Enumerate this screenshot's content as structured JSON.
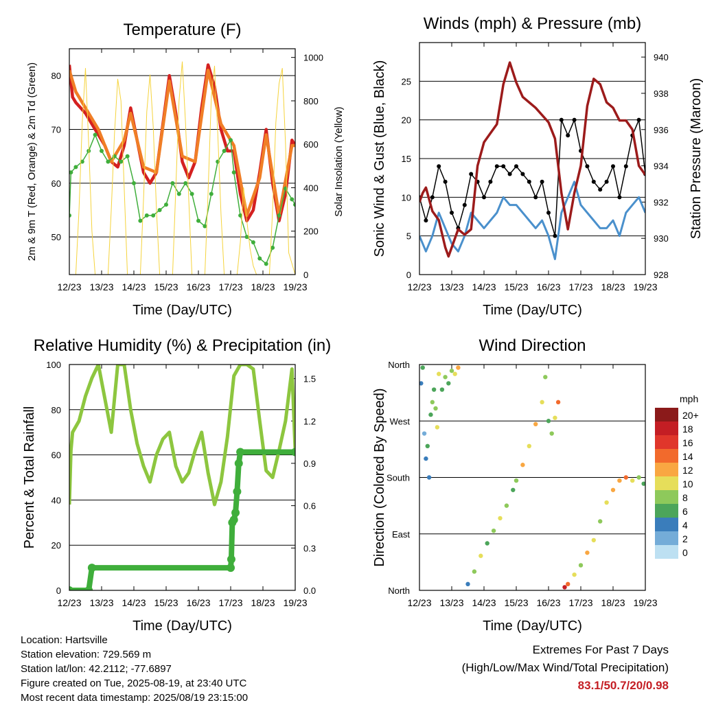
{
  "chart_data": [
    {
      "type": "line",
      "title": "Temperature (F)",
      "xlabel": "Time (Day/UTC)",
      "ylabel": "2m & 9m T (Red, Orange) & 2m Td (Green)",
      "ylabel_right": "Solar Insolation (Yellow)",
      "x_ticks": [
        "12/23",
        "13/23",
        "14/23",
        "15/23",
        "16/23",
        "17/23",
        "18/23",
        "19/23"
      ],
      "x_range": [
        0,
        7
      ],
      "ylim": [
        43,
        85
      ],
      "y_ticks": [
        50,
        60,
        70,
        80
      ],
      "ylim_right": [
        0,
        1040
      ],
      "y_ticks_right": [
        0,
        200,
        400,
        600,
        800,
        1000
      ],
      "grid": true,
      "series": [
        {
          "name": "2m T",
          "color": "#d42020",
          "x": [
            0,
            0.1,
            0.2,
            0.35,
            0.5,
            0.7,
            0.9,
            1.1,
            1.3,
            1.5,
            1.7,
            1.9,
            2.1,
            2.3,
            2.5,
            2.7,
            2.9,
            3.1,
            3.3,
            3.5,
            3.7,
            3.9,
            4.1,
            4.3,
            4.5,
            4.7,
            4.9,
            5.1,
            5.3,
            5.5,
            5.7,
            5.9,
            6.1,
            6.3,
            6.5,
            6.7,
            6.9,
            7
          ],
          "values": [
            82,
            76,
            75,
            74,
            73,
            71,
            69,
            67,
            64,
            63,
            67,
            74,
            68,
            62,
            60,
            62,
            71,
            80,
            73,
            64,
            61,
            64,
            74,
            82,
            78,
            70,
            66,
            66,
            58,
            53,
            55,
            62,
            70,
            60,
            53,
            58,
            68,
            67
          ]
        },
        {
          "name": "9m T",
          "color": "#f07e26",
          "x": [
            0,
            0.2,
            0.5,
            0.9,
            1.3,
            1.7,
            1.9,
            2.3,
            2.7,
            3.1,
            3.5,
            3.9,
            4.3,
            4.7,
            5.1,
            5.5,
            5.9,
            6.1,
            6.5,
            6.9,
            7
          ],
          "values": [
            81,
            77,
            74,
            70,
            64,
            68,
            73,
            63,
            62,
            79,
            65,
            64,
            81,
            71,
            67,
            54,
            61,
            69,
            54,
            67,
            67
          ]
        },
        {
          "name": "2m Td",
          "color": "#3fae3b",
          "x": [
            0,
            0.05,
            0.2,
            0.4,
            0.6,
            0.8,
            1.0,
            1.2,
            1.4,
            1.6,
            1.8,
            2.0,
            2.2,
            2.4,
            2.6,
            2.8,
            3.0,
            3.2,
            3.4,
            3.6,
            3.8,
            4.0,
            4.2,
            4.4,
            4.6,
            4.8,
            5.0,
            5.1,
            5.3,
            5.5,
            5.7,
            5.9,
            6.1,
            6.3,
            6.5,
            6.7,
            6.9,
            7
          ],
          "values": [
            54,
            62,
            63,
            64,
            66,
            69,
            66,
            64,
            65,
            64,
            65,
            60,
            53,
            54,
            54,
            55,
            56,
            60,
            58,
            60,
            58,
            53,
            52,
            58,
            64,
            66,
            68,
            62,
            54,
            50,
            49,
            46,
            45,
            48,
            54,
            59,
            57,
            56
          ]
        },
        {
          "name": "Solar Insolation",
          "color": "#f5d33c",
          "axis": "right",
          "x": [
            0,
            0.2,
            0.3,
            0.4,
            0.5,
            0.6,
            0.7,
            0.8,
            1.0,
            1.2,
            1.3,
            1.4,
            1.5,
            1.6,
            1.7,
            1.8,
            2.0,
            2.2,
            2.3,
            2.4,
            2.5,
            2.6,
            2.7,
            2.8,
            3.0,
            3.2,
            3.3,
            3.4,
            3.5,
            3.6,
            3.7,
            3.8,
            4.0,
            4.2,
            4.3,
            4.4,
            4.5,
            4.6,
            4.7,
            4.8,
            5.0,
            5.2,
            5.3,
            5.4,
            5.5,
            5.6,
            5.7,
            5.8,
            6.0,
            6.2,
            6.3,
            6.4,
            6.5,
            6.6,
            6.7,
            6.8,
            7.0
          ],
          "values": [
            0,
            0,
            300,
            700,
            950,
            600,
            200,
            0,
            0,
            0,
            300,
            650,
            900,
            800,
            400,
            0,
            0,
            0,
            350,
            750,
            920,
            680,
            300,
            0,
            0,
            0,
            400,
            800,
            980,
            700,
            350,
            0,
            0,
            0,
            380,
            820,
            960,
            650,
            280,
            0,
            0,
            0,
            150,
            400,
            250,
            120,
            40,
            0,
            0,
            0,
            300,
            700,
            880,
            950,
            600,
            100,
            0
          ]
        }
      ]
    },
    {
      "type": "line",
      "title": "Winds (mph) & Pressure (mb)",
      "xlabel": "Time (Day/UTC)",
      "ylabel": "Sonic Wind & Gust (Blue, Black)",
      "ylabel_right": "Station Pressure (Maroon)",
      "x_ticks": [
        "12/23",
        "13/23",
        "14/23",
        "15/23",
        "16/23",
        "17/23",
        "18/23",
        "19/23"
      ],
      "x_range": [
        0,
        7
      ],
      "ylim": [
        0,
        30
      ],
      "y_ticks": [
        0,
        5,
        10,
        15,
        20,
        25
      ],
      "ylim_right": [
        928,
        940.8
      ],
      "y_ticks_right": [
        928,
        930,
        932,
        934,
        936,
        938,
        940
      ],
      "grid": true,
      "series": [
        {
          "name": "Sonic Wind",
          "color": "#4a90cc",
          "x": [
            0,
            0.2,
            0.4,
            0.6,
            0.8,
            1.0,
            1.2,
            1.4,
            1.6,
            1.8,
            2.0,
            2.2,
            2.4,
            2.6,
            2.8,
            3.0,
            3.2,
            3.4,
            3.6,
            3.8,
            4.0,
            4.2,
            4.4,
            4.6,
            4.8,
            5.0,
            5.2,
            5.4,
            5.6,
            5.8,
            6.0,
            6.2,
            6.4,
            6.6,
            6.8,
            7.0
          ],
          "values": [
            5,
            3,
            5,
            8,
            6,
            4,
            3,
            5,
            8,
            7,
            6,
            7,
            8,
            10,
            9,
            9,
            8,
            7,
            6,
            7,
            5,
            2,
            8,
            10,
            12,
            9,
            8,
            7,
            6,
            6,
            7,
            5,
            8,
            9,
            10,
            8
          ]
        },
        {
          "name": "Gust",
          "color": "#000000",
          "x": [
            0,
            0.2,
            0.4,
            0.6,
            0.8,
            1.0,
            1.2,
            1.4,
            1.6,
            1.8,
            2.0,
            2.2,
            2.4,
            2.6,
            2.8,
            3.0,
            3.2,
            3.4,
            3.6,
            3.8,
            4.0,
            4.2,
            4.4,
            4.6,
            4.8,
            5.0,
            5.2,
            5.4,
            5.6,
            5.8,
            6.0,
            6.2,
            6.4,
            6.6,
            6.8,
            7.0
          ],
          "values": [
            10,
            7,
            10,
            14,
            12,
            8,
            6,
            9,
            13,
            12,
            10,
            12,
            14,
            14,
            13,
            14,
            13,
            12,
            10,
            12,
            8,
            5,
            20,
            18,
            20,
            16,
            14,
            12,
            11,
            12,
            14,
            10,
            14,
            18,
            20,
            13
          ]
        },
        {
          "name": "Station Pressure",
          "color": "#9c1b1b",
          "axis": "right",
          "x": [
            0,
            0.1,
            0.2,
            0.4,
            0.6,
            0.8,
            0.9,
            1.0,
            1.2,
            1.4,
            1.6,
            1.8,
            2.0,
            2.2,
            2.4,
            2.6,
            2.8,
            3.0,
            3.2,
            3.4,
            3.6,
            3.8,
            4.0,
            4.2,
            4.4,
            4.6,
            4.8,
            5.0,
            5.2,
            5.4,
            5.6,
            5.8,
            6.0,
            6.2,
            6.4,
            6.6,
            6.8,
            7.0
          ],
          "values": [
            932,
            932.5,
            932.8,
            931.5,
            931,
            929.5,
            929,
            929.5,
            930.5,
            930.2,
            930.5,
            934,
            935.3,
            935.8,
            936.3,
            938.5,
            939.7,
            938.6,
            937.8,
            937.5,
            937.2,
            936.8,
            936.4,
            935.5,
            932.5,
            930.5,
            932.5,
            934,
            937.3,
            938.8,
            938.5,
            937.5,
            937.2,
            936.5,
            936.5,
            936,
            934,
            933.5
          ]
        }
      ]
    },
    {
      "type": "line",
      "title": "Relative Humidity (%) & Precipitation (in)",
      "xlabel": "Time (Day/UTC)",
      "ylabel": "Percent & Total Rainfall",
      "x_ticks": [
        "12/23",
        "13/23",
        "14/23",
        "15/23",
        "16/23",
        "17/23",
        "18/23",
        "19/23"
      ],
      "x_range": [
        0,
        7
      ],
      "ylim": [
        0,
        100
      ],
      "y_ticks": [
        0,
        20,
        40,
        60,
        80,
        100
      ],
      "ylim_right": [
        0,
        1.6
      ],
      "y_ticks_right": [
        "0.0",
        "0.3",
        "0.6",
        "0.9",
        "1.2",
        "1.5"
      ],
      "grid": true,
      "series": [
        {
          "name": "Relative Humidity",
          "color": "#8dc63f",
          "x": [
            0,
            0.05,
            0.1,
            0.3,
            0.5,
            0.7,
            0.9,
            1.1,
            1.3,
            1.5,
            1.7,
            1.9,
            2.1,
            2.3,
            2.5,
            2.7,
            2.9,
            3.1,
            3.3,
            3.5,
            3.7,
            3.9,
            4.1,
            4.3,
            4.5,
            4.7,
            4.9,
            5.1,
            5.3,
            5.5,
            5.7,
            5.9,
            6.1,
            6.3,
            6.5,
            6.7,
            6.9,
            7
          ],
          "values": [
            38,
            62,
            70,
            75,
            86,
            94,
            100,
            85,
            70,
            100,
            100,
            80,
            65,
            55,
            48,
            60,
            67,
            70,
            55,
            48,
            52,
            62,
            70,
            52,
            38,
            48,
            68,
            95,
            100,
            100,
            98,
            75,
            53,
            50,
            62,
            75,
            98,
            62
          ]
        },
        {
          "name": "Total Rainfall",
          "color": "#3fae3b",
          "axis": "right",
          "x": [
            0,
            0.6,
            0.7,
            5.0,
            5.02,
            5.05,
            5.1,
            5.15,
            5.2,
            5.25,
            5.3,
            7.0
          ],
          "values": [
            0,
            0,
            0.16,
            0.16,
            0.22,
            0.48,
            0.5,
            0.55,
            0.7,
            0.9,
            0.98,
            0.98
          ]
        }
      ]
    },
    {
      "type": "scatter",
      "title": "Wind Direction",
      "xlabel": "Time (Day/UTC)",
      "ylabel": "Direction (Colored By Speed)",
      "x_ticks": [
        "12/23",
        "13/23",
        "14/23",
        "15/23",
        "16/23",
        "17/23",
        "18/23",
        "19/23"
      ],
      "x_range": [
        0,
        7
      ],
      "y_categories": [
        "North",
        "East",
        "South",
        "West",
        "North"
      ],
      "ylim": [
        0,
        360
      ],
      "grid": true,
      "legend": {
        "title": "mph",
        "position": "right",
        "labels": [
          "20+",
          "18",
          "16",
          "14",
          "12",
          "10",
          "8",
          "6",
          "4",
          "2",
          "0"
        ],
        "colors": [
          "#8b1a1a",
          "#c41e24",
          "#e0362b",
          "#f26a2c",
          "#f9a742",
          "#e6de5a",
          "#8ec95b",
          "#4ca55a",
          "#3a7dbb",
          "#74acd8",
          "#bde0f2"
        ]
      },
      "points": [
        {
          "x": 0.05,
          "y": 330,
          "s": 4
        },
        {
          "x": 0.1,
          "y": 355,
          "s": 6
        },
        {
          "x": 0.15,
          "y": 250,
          "s": 2
        },
        {
          "x": 0.2,
          "y": 210,
          "s": 4
        },
        {
          "x": 0.25,
          "y": 230,
          "s": 6
        },
        {
          "x": 0.3,
          "y": 180,
          "s": 3
        },
        {
          "x": 0.35,
          "y": 280,
          "s": 5
        },
        {
          "x": 0.4,
          "y": 300,
          "s": 8
        },
        {
          "x": 0.45,
          "y": 320,
          "s": 6
        },
        {
          "x": 0.5,
          "y": 290,
          "s": 7
        },
        {
          "x": 0.55,
          "y": 260,
          "s": 9
        },
        {
          "x": 0.6,
          "y": 345,
          "s": 10
        },
        {
          "x": 0.7,
          "y": 320,
          "s": 6
        },
        {
          "x": 0.8,
          "y": 340,
          "s": 8
        },
        {
          "x": 0.9,
          "y": 330,
          "s": 6
        },
        {
          "x": 1.0,
          "y": 350,
          "s": 7
        },
        {
          "x": 1.1,
          "y": 345,
          "s": 10
        },
        {
          "x": 1.2,
          "y": 355,
          "s": 12
        },
        {
          "x": 1.5,
          "y": 10,
          "s": 4
        },
        {
          "x": 1.7,
          "y": 30,
          "s": 8
        },
        {
          "x": 1.9,
          "y": 55,
          "s": 10
        },
        {
          "x": 2.1,
          "y": 75,
          "s": 6
        },
        {
          "x": 2.3,
          "y": 95,
          "s": 8
        },
        {
          "x": 2.5,
          "y": 115,
          "s": 10
        },
        {
          "x": 2.7,
          "y": 135,
          "s": 8
        },
        {
          "x": 2.9,
          "y": 160,
          "s": 6
        },
        {
          "x": 3.0,
          "y": 175,
          "s": 8
        },
        {
          "x": 3.2,
          "y": 200,
          "s": 12
        },
        {
          "x": 3.4,
          "y": 230,
          "s": 10
        },
        {
          "x": 3.6,
          "y": 265,
          "s": 12
        },
        {
          "x": 3.8,
          "y": 300,
          "s": 10
        },
        {
          "x": 3.9,
          "y": 340,
          "s": 8
        },
        {
          "x": 4.0,
          "y": 270,
          "s": 6
        },
        {
          "x": 4.1,
          "y": 250,
          "s": 8
        },
        {
          "x": 4.2,
          "y": 275,
          "s": 10
        },
        {
          "x": 4.3,
          "y": 300,
          "s": 14
        },
        {
          "x": 4.5,
          "y": 5,
          "s": 18
        },
        {
          "x": 4.6,
          "y": 10,
          "s": 14
        },
        {
          "x": 4.8,
          "y": 25,
          "s": 10
        },
        {
          "x": 5.0,
          "y": 40,
          "s": 8
        },
        {
          "x": 5.2,
          "y": 60,
          "s": 12
        },
        {
          "x": 5.4,
          "y": 80,
          "s": 10
        },
        {
          "x": 5.6,
          "y": 110,
          "s": 8
        },
        {
          "x": 5.8,
          "y": 140,
          "s": 10
        },
        {
          "x": 6.0,
          "y": 160,
          "s": 12
        },
        {
          "x": 6.2,
          "y": 175,
          "s": 12
        },
        {
          "x": 6.4,
          "y": 180,
          "s": 14
        },
        {
          "x": 6.6,
          "y": 175,
          "s": 10
        },
        {
          "x": 6.8,
          "y": 180,
          "s": 8
        },
        {
          "x": 6.95,
          "y": 170,
          "s": 6
        }
      ]
    }
  ],
  "info": {
    "location": "Location: Hartsville",
    "elevation": "Station elevation: 729.569 m",
    "latlon": "Station lat/lon: 42.2112; -77.6897",
    "created": "Figure created on Tue, 2025-08-19, at 23:40 UTC",
    "timestamp": "Most recent data timestamp: 2025/08/19 23:15:00"
  },
  "extremes": {
    "title": "Extremes For Past 7 Days",
    "subtitle": "(High/Low/Max Wind/Total Precipitation)",
    "value": "83.1/50.7/20/0.98"
  }
}
